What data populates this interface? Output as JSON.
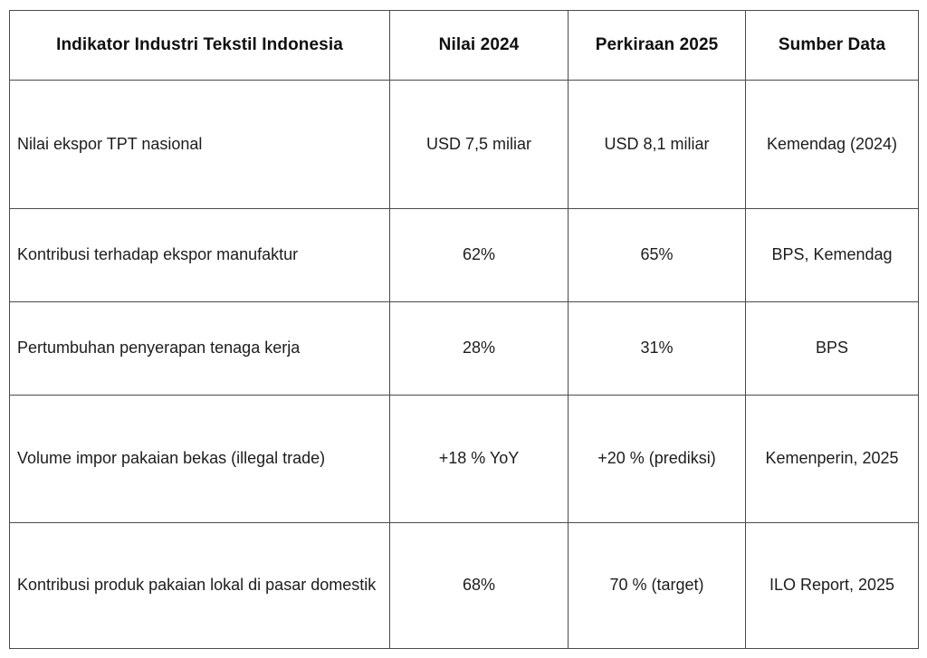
{
  "chart_data": {
    "type": "table",
    "columns": [
      "Indikator Industri Tekstil Indonesia",
      "Nilai 2024",
      "Perkiraan 2025",
      "Sumber Data"
    ],
    "rows": [
      [
        "Nilai ekspor TPT nasional",
        "USD 7,5 miliar",
        "USD 8,1 miliar",
        "Kemendag (2024)"
      ],
      [
        "Kontribusi terhadap ekspor manufaktur",
        "62%",
        "65%",
        "BPS, Kemendag"
      ],
      [
        "Pertumbuhan penyerapan tenaga kerja",
        "28%",
        "31%",
        "BPS"
      ],
      [
        "Volume impor pakaian bekas (illegal trade)",
        "+18 % YoY",
        "+20 % (prediksi)",
        "Kemenperin, 2025"
      ],
      [
        "Kontribusi produk pakaian lokal di pasar domestik",
        "68%",
        "70 % (target)",
        "ILO Report, 2025"
      ]
    ],
    "layout": {
      "grid": "full-borders",
      "first_column_align": "left",
      "value_columns_align": "center"
    }
  },
  "colors": {
    "background": "#ffffff",
    "border": "#4b4b4b",
    "header_text": "#0f0f0f",
    "body_text": "#1d1d1d"
  }
}
